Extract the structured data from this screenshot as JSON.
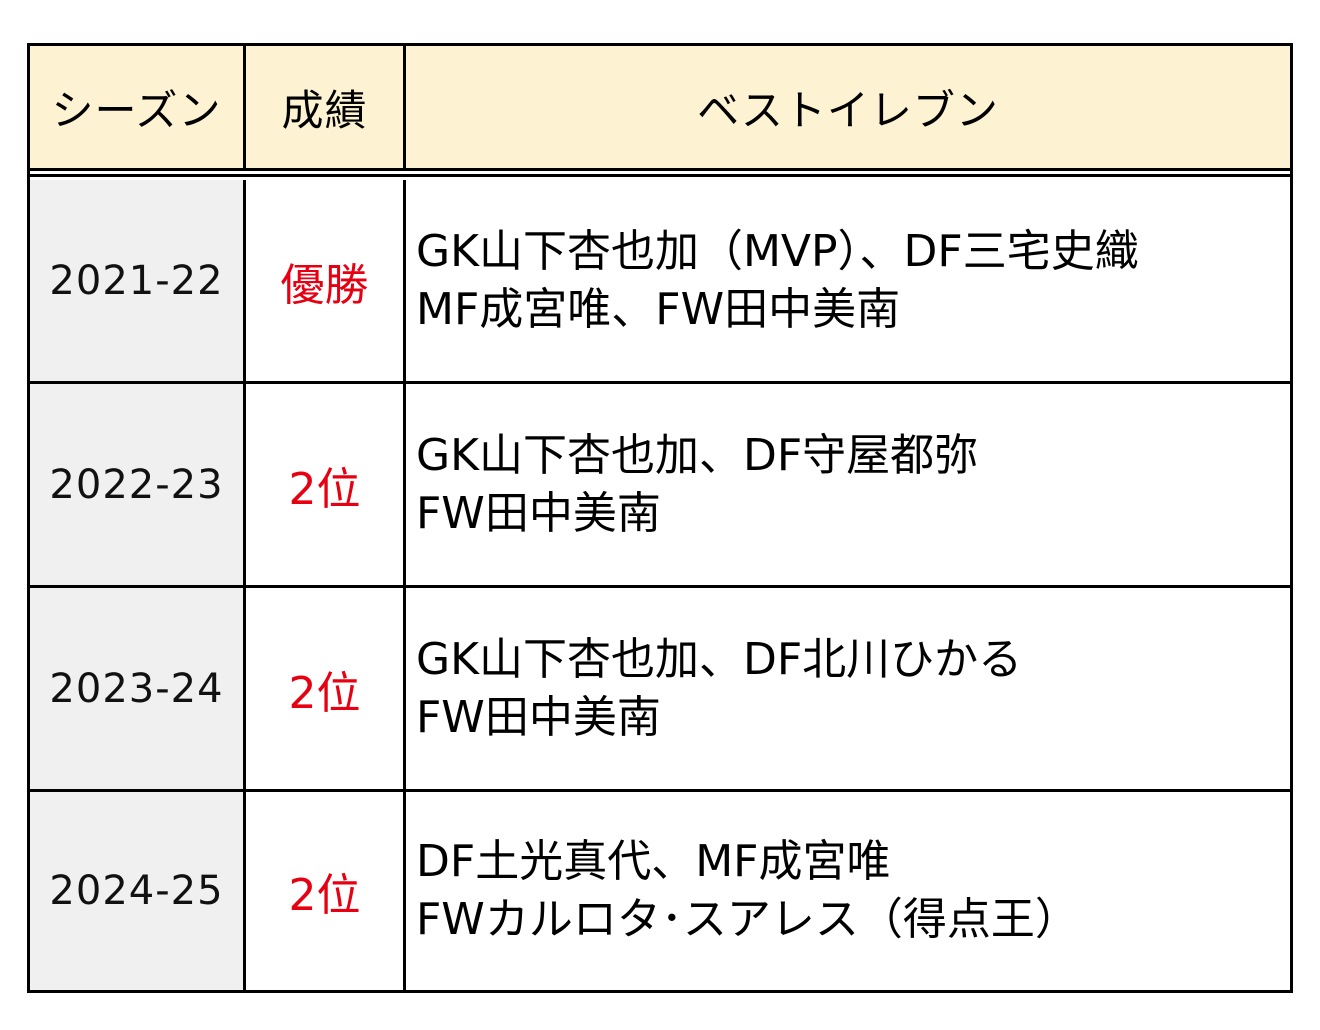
{
  "table": {
    "headers": {
      "season": "シーズン",
      "result": "成績",
      "best_eleven": "ベストイレブン"
    },
    "rows": [
      {
        "season": "2021-22",
        "result": "優勝",
        "best_eleven": [
          "GK山下杏也加（MVP）、DF三宅史織",
          "MF成宮唯、FW田中美南"
        ]
      },
      {
        "season": "2022-23",
        "result": "2位",
        "best_eleven": [
          "GK山下杏也加、DF守屋都弥",
          "FW田中美南"
        ]
      },
      {
        "season": "2023-24",
        "result": "2位",
        "best_eleven": [
          "GK山下杏也加、DF北川ひかる",
          "FW田中美南"
        ]
      },
      {
        "season": "2024-25",
        "result": "2位",
        "best_eleven": [
          "DF土光真代、MF成宮唯",
          "FWカルロタ･スアレス（得点王）"
        ]
      }
    ],
    "colors": {
      "header_bg": "#fdf2d2",
      "season_bg": "#f0f0f0",
      "result_text": "#e60012",
      "border": "#000000"
    }
  }
}
